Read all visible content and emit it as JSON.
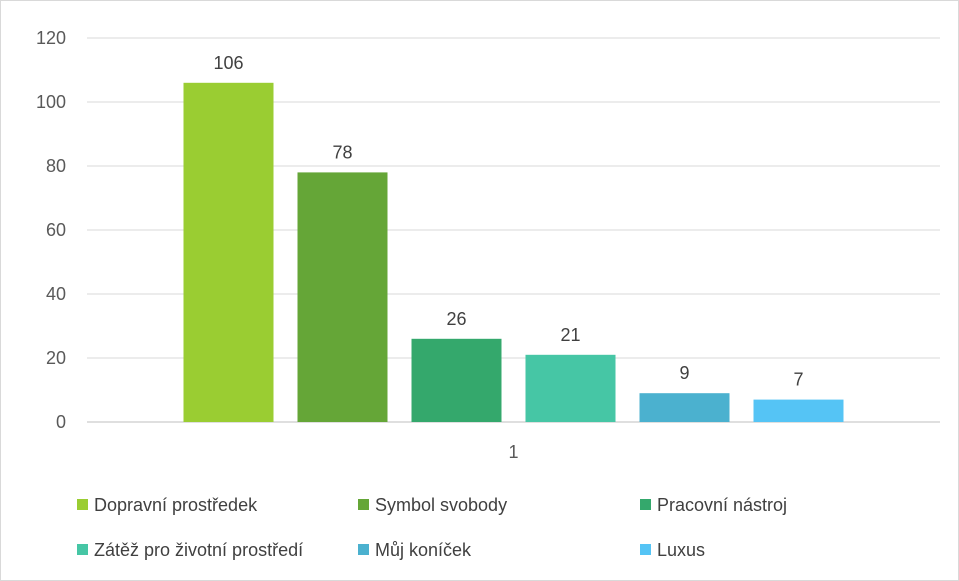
{
  "chart_data": {
    "type": "bar",
    "categories": [
      "1"
    ],
    "ylim": [
      0,
      120
    ],
    "yticks": [
      0,
      20,
      40,
      60,
      80,
      100,
      120
    ],
    "grid": true,
    "legend_position": "bottom",
    "series": [
      {
        "name": "Dopravní prostředek",
        "values": [
          106
        ],
        "color": "#9acd32"
      },
      {
        "name": "Symbol svobody",
        "values": [
          78
        ],
        "color": "#65a637"
      },
      {
        "name": "Pracovní nástroj",
        "values": [
          26
        ],
        "color": "#34a86c"
      },
      {
        "name": "Zátěž pro životní prostředí",
        "values": [
          21
        ],
        "color": "#46c6a5"
      },
      {
        "name": "Můj koníček",
        "values": [
          9
        ],
        "color": "#4bb1cf"
      },
      {
        "name": "Luxus",
        "values": [
          7
        ],
        "color": "#55c4f5"
      }
    ]
  }
}
